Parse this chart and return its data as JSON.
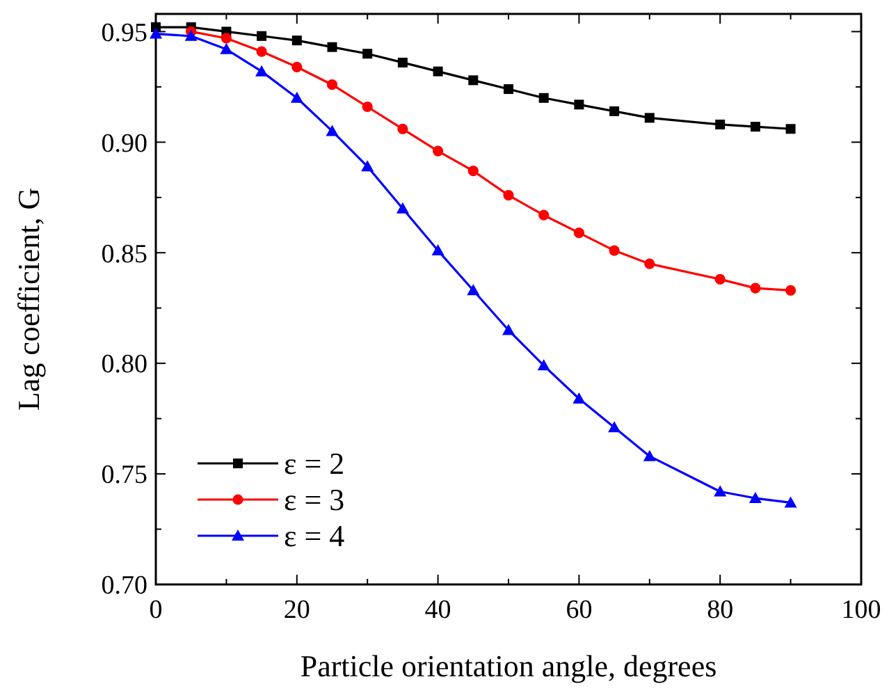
{
  "chart_data": {
    "type": "line",
    "xlabel": "Particle orientation angle, degrees",
    "ylabel": "Lag coefficient, G",
    "x": [
      0,
      5,
      10,
      15,
      20,
      25,
      30,
      35,
      40,
      45,
      50,
      55,
      60,
      65,
      70,
      80,
      85,
      90
    ],
    "series": [
      {
        "name": "ε = 2",
        "color": "#000000",
        "marker": "square",
        "values": [
          0.952,
          0.952,
          0.95,
          0.948,
          0.946,
          0.943,
          0.94,
          0.936,
          0.932,
          0.928,
          0.924,
          0.92,
          0.917,
          0.914,
          0.911,
          0.908,
          0.907,
          0.906
        ]
      },
      {
        "name": "ε = 3",
        "color": "#ff0000",
        "marker": "circle",
        "values": [
          null,
          0.95,
          0.947,
          0.941,
          0.934,
          0.926,
          0.916,
          0.906,
          0.896,
          0.887,
          0.876,
          0.867,
          0.859,
          0.851,
          0.845,
          0.838,
          0.834,
          0.833
        ]
      },
      {
        "name": "ε = 4",
        "color": "#0000ff",
        "marker": "triangle",
        "values": [
          0.949,
          0.948,
          0.942,
          0.932,
          0.92,
          0.905,
          0.889,
          0.87,
          0.851,
          0.833,
          0.815,
          0.799,
          0.784,
          0.771,
          0.758,
          0.742,
          0.739,
          0.737
        ]
      }
    ],
    "xlim": [
      0,
      100
    ],
    "xticks": [
      0,
      20,
      40,
      60,
      80,
      100
    ],
    "ylim": [
      0.7,
      0.958
    ],
    "yticks": [
      {
        "value": 0.7,
        "label": "0.70"
      },
      0.75,
      {
        "value": 0.8,
        "label": "0.80"
      },
      0.85,
      {
        "value": 0.9,
        "label": "0.90"
      },
      0.95
    ],
    "legend": "bottom left",
    "grid": false,
    "line_style": "solid"
  }
}
